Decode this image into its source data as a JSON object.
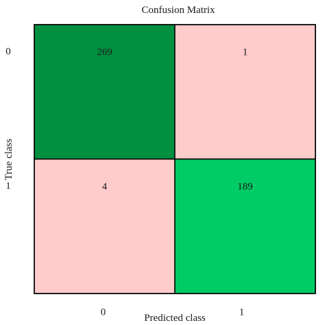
{
  "chart_data": {
    "type": "heatmap",
    "title": "Confusion Matrix",
    "xlabel": "Predicted class",
    "ylabel": "True class",
    "x_categories": [
      "0",
      "1"
    ],
    "y_categories": [
      "0",
      "1"
    ],
    "cells": [
      {
        "row": 0,
        "col": 0,
        "value": 269,
        "label": "269",
        "color": "#009040"
      },
      {
        "row": 0,
        "col": 1,
        "value": 1,
        "label": "1",
        "color": "#ffcccc"
      },
      {
        "row": 1,
        "col": 0,
        "value": 4,
        "label": "4",
        "color": "#ffcccc"
      },
      {
        "row": 1,
        "col": 1,
        "value": 189,
        "label": "189",
        "color": "#00cc66"
      }
    ],
    "grid": false,
    "legend": "none"
  }
}
